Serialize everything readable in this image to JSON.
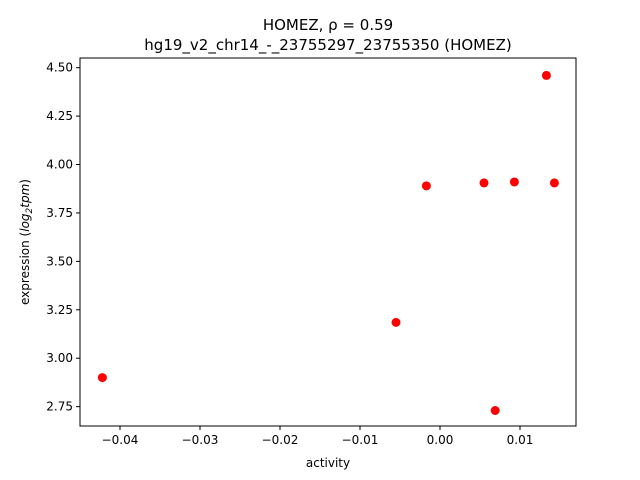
{
  "chart_data": {
    "type": "scatter",
    "title_line1": "HOMEZ, ρ = 0.59",
    "title_line2": "hg19_v2_chr14_-_23755297_23755350 (HOMEZ)",
    "xlabel": "activity",
    "ylabel_prefix": "expression (",
    "ylabel_italic": "log",
    "ylabel_sub": "2",
    "ylabel_italic2": "tpm",
    "ylabel_suffix": ")",
    "xlim": [
      -0.045,
      0.017
    ],
    "ylim": [
      2.65,
      4.55
    ],
    "xticks": [
      {
        "value": -0.04,
        "label": "−0.04"
      },
      {
        "value": -0.03,
        "label": "−0.03"
      },
      {
        "value": -0.02,
        "label": "−0.02"
      },
      {
        "value": -0.01,
        "label": "−0.01"
      },
      {
        "value": 0.0,
        "label": "0.00"
      },
      {
        "value": 0.01,
        "label": "0.01"
      }
    ],
    "yticks": [
      {
        "value": 2.75,
        "label": "2.75"
      },
      {
        "value": 3.0,
        "label": "3.00"
      },
      {
        "value": 3.25,
        "label": "3.25"
      },
      {
        "value": 3.5,
        "label": "3.50"
      },
      {
        "value": 3.75,
        "label": "3.75"
      },
      {
        "value": 4.0,
        "label": "4.00"
      },
      {
        "value": 4.25,
        "label": "4.25"
      },
      {
        "value": 4.5,
        "label": "4.50"
      }
    ],
    "marker_color": "#ff0000",
    "grid": false,
    "points": [
      {
        "x": -0.0422,
        "y": 2.9
      },
      {
        "x": -0.0055,
        "y": 3.185
      },
      {
        "x": -0.0017,
        "y": 3.89
      },
      {
        "x": 0.0055,
        "y": 3.905
      },
      {
        "x": 0.0069,
        "y": 2.73
      },
      {
        "x": 0.0093,
        "y": 3.91
      },
      {
        "x": 0.0133,
        "y": 4.46
      },
      {
        "x": 0.0143,
        "y": 3.905
      }
    ]
  }
}
